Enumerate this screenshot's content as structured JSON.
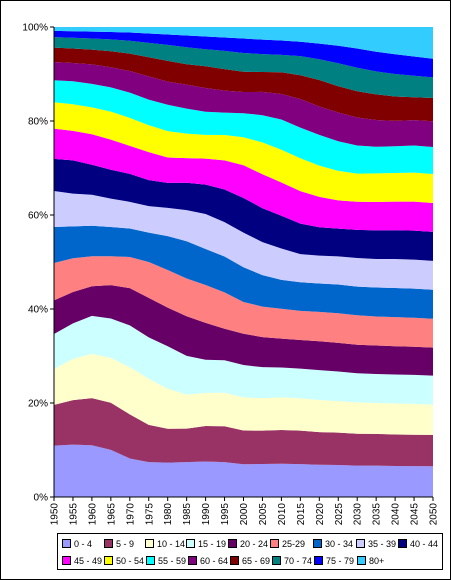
{
  "chart_data": {
    "type": "area",
    "stacked": true,
    "percent": true,
    "title": "",
    "xlabel": "",
    "ylabel": "",
    "ylim": [
      0,
      100
    ],
    "y_ticks": [
      "0%",
      "20%",
      "40%",
      "60%",
      "80%",
      "100%"
    ],
    "grid": false,
    "legend_position": "bottom",
    "x": [
      1950,
      1955,
      1960,
      1965,
      1970,
      1975,
      1980,
      1985,
      1990,
      1995,
      2000,
      2005,
      2010,
      2015,
      2020,
      2025,
      2030,
      2035,
      2040,
      2045,
      2050
    ],
    "x_tick_labels": [
      "1950",
      "1955",
      "1960",
      "1965",
      "1970",
      "1975",
      "1980",
      "1985",
      "1990",
      "1995",
      "2000",
      "2005",
      "2010",
      "2015",
      "2020",
      "2025",
      "2030",
      "2035",
      "2040",
      "2045",
      "2050"
    ],
    "series": [
      {
        "name": "0 - 4",
        "color": "#9999ff",
        "values": [
          10.7,
          11.2,
          11.2,
          10.3,
          8.4,
          7.5,
          7.3,
          7.4,
          7.5,
          7.3,
          6.8,
          6.8,
          6.9,
          6.9,
          6.8,
          6.8,
          6.7,
          6.7,
          6.6,
          6.6,
          6.6
        ]
      },
      {
        "name": "5 - 9",
        "color": "#993366",
        "values": [
          8.5,
          9.5,
          10.2,
          10.3,
          9.6,
          8.0,
          7.2,
          7.1,
          7.5,
          7.5,
          7.0,
          6.9,
          7.0,
          7.0,
          6.9,
          6.9,
          6.8,
          6.8,
          6.7,
          6.7,
          6.7
        ]
      },
      {
        "name": "10 - 14",
        "color": "#ffffcc",
        "values": [
          7.5,
          8.8,
          9.6,
          9.8,
          10.3,
          9.9,
          8.5,
          7.2,
          7.0,
          7.0,
          6.9,
          6.7,
          6.8,
          6.8,
          6.8,
          6.7,
          6.7,
          6.6,
          6.6,
          6.6,
          6.5
        ]
      },
      {
        "name": "15 - 19",
        "color": "#ccffff",
        "values": [
          7.3,
          7.6,
          8.2,
          8.6,
          9.1,
          8.9,
          9.0,
          8.2,
          7.0,
          6.8,
          6.7,
          6.4,
          6.2,
          6.2,
          6.3,
          6.3,
          6.2,
          6.2,
          6.2,
          6.2,
          6.2
        ]
      },
      {
        "name": "20 - 24",
        "color": "#660066",
        "values": [
          7.0,
          6.7,
          6.4,
          7.3,
          8.1,
          8.5,
          8.2,
          8.4,
          7.8,
          6.6,
          6.5,
          6.2,
          6.0,
          6.0,
          6.1,
          6.1,
          6.1,
          6.1,
          6.0,
          6.0,
          6.0
        ]
      },
      {
        "name": "25-29",
        "color": "#ff8080",
        "values": [
          7.8,
          7.2,
          6.5,
          6.3,
          6.8,
          7.7,
          8.0,
          8.0,
          8.0,
          7.6,
          6.6,
          6.3,
          6.2,
          6.1,
          6.2,
          6.3,
          6.3,
          6.2,
          6.2,
          6.2,
          6.2
        ]
      },
      {
        "name": "30 - 34",
        "color": "#0066cc",
        "values": [
          7.5,
          6.8,
          6.6,
          6.4,
          6.2,
          6.3,
          7.2,
          7.9,
          7.6,
          7.5,
          7.2,
          6.5,
          6.0,
          6.0,
          6.0,
          6.1,
          6.1,
          6.2,
          6.2,
          6.2,
          6.2
        ]
      },
      {
        "name": "35 - 39",
        "color": "#ccccff",
        "values": [
          7.5,
          7.0,
          6.7,
          6.2,
          5.8,
          5.7,
          6.0,
          6.6,
          7.4,
          7.2,
          7.2,
          6.8,
          6.5,
          5.9,
          5.9,
          6.0,
          6.1,
          6.1,
          6.2,
          6.2,
          6.2
        ]
      },
      {
        "name": "40 - 44",
        "color": "#000080",
        "values": [
          6.7,
          7.1,
          6.5,
          6.3,
          6.1,
          5.6,
          5.3,
          5.8,
          6.2,
          6.8,
          7.2,
          7.0,
          6.8,
          6.4,
          6.0,
          5.9,
          6.0,
          6.1,
          6.1,
          6.2,
          6.2
        ]
      },
      {
        "name": "45 - 49",
        "color": "#ff00ff",
        "values": [
          6.3,
          6.3,
          6.6,
          6.6,
          6.1,
          6.0,
          5.4,
          5.2,
          5.5,
          6.1,
          6.8,
          7.0,
          6.9,
          6.8,
          6.4,
          6.0,
          6.0,
          6.1,
          6.1,
          6.2,
          6.2
        ]
      },
      {
        "name": "50 - 54",
        "color": "#ffff00",
        "values": [
          5.5,
          5.7,
          5.8,
          6.1,
          6.1,
          5.8,
          5.6,
          5.2,
          5.0,
          5.3,
          5.8,
          6.6,
          6.8,
          6.9,
          6.6,
          6.3,
          6.0,
          6.1,
          6.1,
          6.2,
          6.2
        ]
      },
      {
        "name": "55 - 59",
        "color": "#00ffff",
        "values": [
          4.6,
          4.9,
          5.1,
          5.3,
          5.5,
          5.5,
          5.6,
          5.3,
          4.9,
          4.7,
          5.0,
          5.6,
          6.3,
          6.4,
          6.5,
          6.3,
          6.0,
          5.7,
          5.7,
          5.8,
          5.8
        ]
      },
      {
        "name": "60 - 64",
        "color": "#800080",
        "values": [
          3.8,
          3.9,
          4.2,
          4.4,
          4.7,
          5.0,
          4.9,
          5.1,
          5.0,
          4.6,
          4.4,
          4.8,
          5.3,
          6.0,
          6.0,
          6.1,
          6.0,
          5.7,
          5.4,
          5.4,
          5.5
        ]
      },
      {
        "name": "65 - 69",
        "color": "#800000",
        "values": [
          3.0,
          3.1,
          3.2,
          3.5,
          3.8,
          4.1,
          4.4,
          4.3,
          4.6,
          4.5,
          4.2,
          4.1,
          4.5,
          5.0,
          5.6,
          5.6,
          5.6,
          5.5,
          5.2,
          4.9,
          5.0
        ]
      },
      {
        "name": "70 - 74",
        "color": "#008080",
        "values": [
          2.2,
          2.3,
          2.4,
          2.6,
          2.8,
          3.1,
          3.4,
          3.6,
          3.6,
          3.8,
          3.9,
          3.7,
          3.6,
          4.0,
          4.4,
          4.9,
          5.0,
          4.9,
          4.8,
          4.6,
          4.4
        ]
      },
      {
        "name": "75 - 79",
        "color": "#0000ff",
        "values": [
          1.3,
          1.4,
          1.5,
          1.6,
          1.8,
          2.0,
          2.2,
          2.5,
          2.7,
          2.8,
          3.0,
          3.0,
          3.0,
          3.0,
          3.3,
          3.7,
          4.1,
          4.2,
          4.2,
          4.1,
          4.0
        ]
      },
      {
        "name": "80+",
        "color": "#33ccff",
        "values": [
          0.8,
          0.9,
          1.0,
          1.1,
          1.2,
          1.4,
          1.6,
          1.8,
          2.0,
          2.2,
          2.4,
          2.6,
          2.8,
          3.1,
          3.5,
          4.0,
          4.6,
          5.3,
          5.8,
          6.3,
          6.8
        ]
      }
    ]
  }
}
